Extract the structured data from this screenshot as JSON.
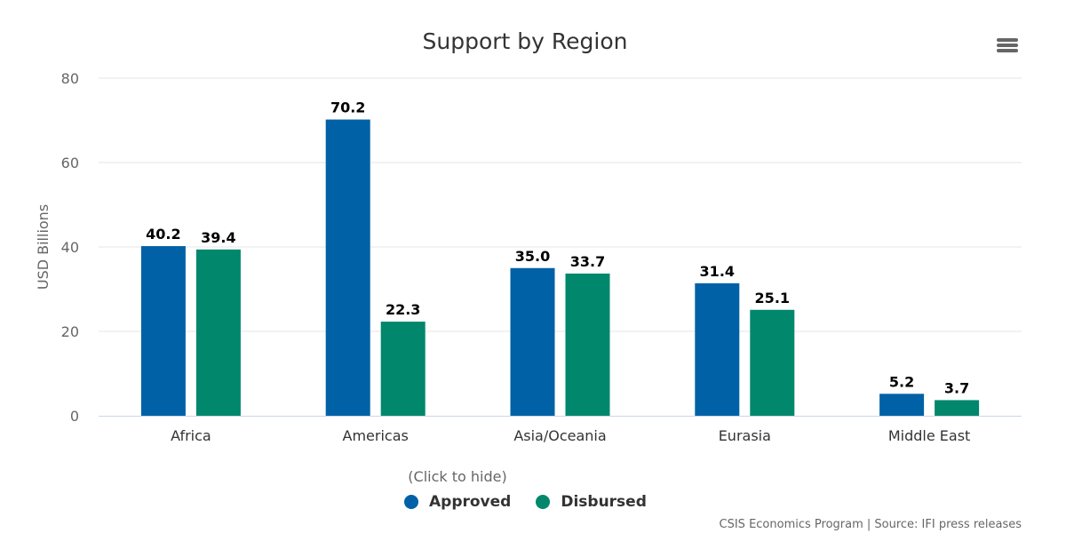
{
  "chart_data": {
    "type": "bar",
    "title": "Support by Region",
    "xlabel": "",
    "ylabel": "USD Billions",
    "ylim": [
      0,
      80
    ],
    "yticks": [
      0,
      20,
      40,
      60,
      80
    ],
    "grid": true,
    "categories": [
      "Africa",
      "Americas",
      "Asia/Oceania",
      "Eurasia",
      "Middle East"
    ],
    "series": [
      {
        "name": "Approved",
        "color": "#0061a6",
        "values": [
          40.2,
          70.2,
          35.0,
          31.4,
          5.2
        ]
      },
      {
        "name": "Disbursed",
        "color": "#00876c",
        "values": [
          39.4,
          22.3,
          33.7,
          25.1,
          3.7
        ]
      }
    ],
    "legend": {
      "title": "(Click to hide)",
      "position": "bottom-center"
    },
    "credits": "CSIS Economics Program | Source: IFI press releases"
  },
  "menu": {
    "icon": "hamburger-menu-icon"
  }
}
